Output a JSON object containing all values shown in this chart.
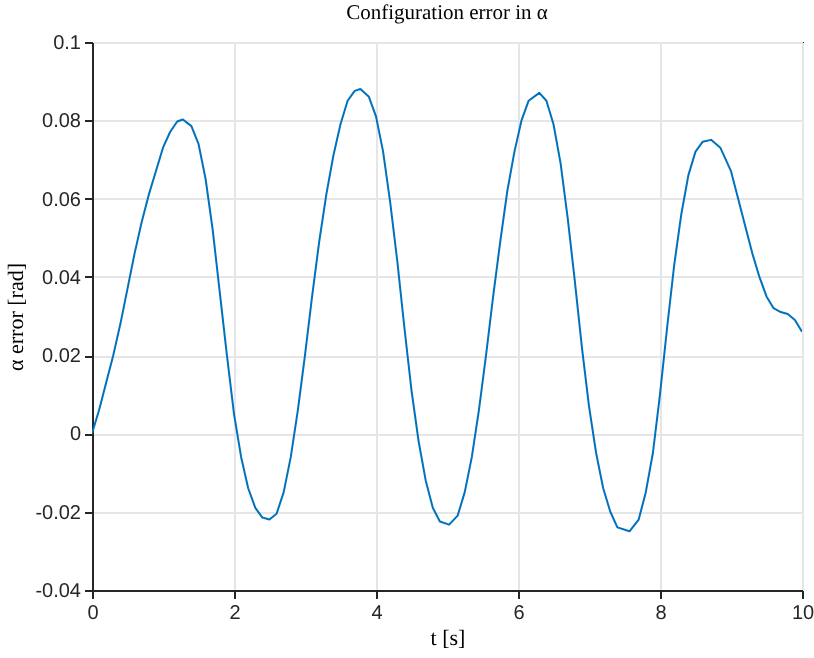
{
  "chart_data": {
    "type": "line",
    "title": "Configuration error in α",
    "xlabel": "t [s]",
    "ylabel": "α error [rad]",
    "x": [
      0,
      0.1,
      0.2,
      0.3,
      0.4,
      0.5,
      0.6,
      0.7,
      0.8,
      0.9,
      1.0,
      1.1,
      1.2,
      1.28,
      1.4,
      1.5,
      1.6,
      1.7,
      1.8,
      1.9,
      2.0,
      2.1,
      2.2,
      2.3,
      2.4,
      2.5,
      2.6,
      2.7,
      2.8,
      2.9,
      3.0,
      3.1,
      3.2,
      3.3,
      3.4,
      3.5,
      3.6,
      3.7,
      3.78,
      3.9,
      4.0,
      4.1,
      4.2,
      4.3,
      4.4,
      4.5,
      4.6,
      4.7,
      4.8,
      4.9,
      5.03,
      5.15,
      5.25,
      5.35,
      5.45,
      5.55,
      5.65,
      5.75,
      5.85,
      5.95,
      6.05,
      6.15,
      6.3,
      6.4,
      6.5,
      6.6,
      6.7,
      6.8,
      6.9,
      7.0,
      7.1,
      7.2,
      7.3,
      7.4,
      7.57,
      7.7,
      7.8,
      7.9,
      8.0,
      8.1,
      8.2,
      8.3,
      8.4,
      8.5,
      8.6,
      8.72,
      8.85,
      9.0,
      9.1,
      9.2,
      9.3,
      9.4,
      9.5,
      9.6,
      9.7,
      9.8,
      9.9,
      10.0
    ],
    "series": [
      {
        "color": "#0072bd",
        "values": [
          0,
          0.006,
          0.013,
          0.02,
          0.028,
          0.037,
          0.046,
          0.054,
          0.061,
          0.067,
          0.073,
          0.077,
          0.0797,
          0.0802,
          0.0785,
          0.074,
          0.065,
          0.052,
          0.036,
          0.02,
          0.005,
          -0.006,
          -0.014,
          -0.019,
          -0.0215,
          -0.022,
          -0.0205,
          -0.015,
          -0.006,
          0.006,
          0.02,
          0.035,
          0.049,
          0.061,
          0.071,
          0.079,
          0.085,
          0.0875,
          0.088,
          0.086,
          0.081,
          0.072,
          0.059,
          0.044,
          0.027,
          0.011,
          -0.002,
          -0.012,
          -0.019,
          -0.0225,
          -0.0233,
          -0.021,
          -0.015,
          -0.006,
          0.006,
          0.02,
          0.035,
          0.049,
          0.062,
          0.072,
          0.08,
          0.085,
          0.087,
          0.085,
          0.079,
          0.069,
          0.055,
          0.039,
          0.022,
          0.007,
          -0.005,
          -0.014,
          -0.02,
          -0.024,
          -0.025,
          -0.022,
          -0.015,
          -0.005,
          0.01,
          0.027,
          0.043,
          0.056,
          0.066,
          0.072,
          0.0745,
          0.075,
          0.073,
          0.067,
          0.06,
          0.053,
          0.046,
          0.04,
          0.035,
          0.032,
          0.031,
          0.0305,
          0.029,
          0.026
        ]
      }
    ],
    "xlim": [
      0,
      10
    ],
    "xticks": [
      0,
      2,
      4,
      6,
      8,
      10
    ],
    "ylim": [
      -0.04,
      0.1
    ],
    "yticks": [
      -0.04,
      -0.02,
      0,
      0.02,
      0.04,
      0.06,
      0.08,
      0.1
    ],
    "grid": true,
    "legend": false,
    "marker": "none",
    "line_style": "solid"
  }
}
